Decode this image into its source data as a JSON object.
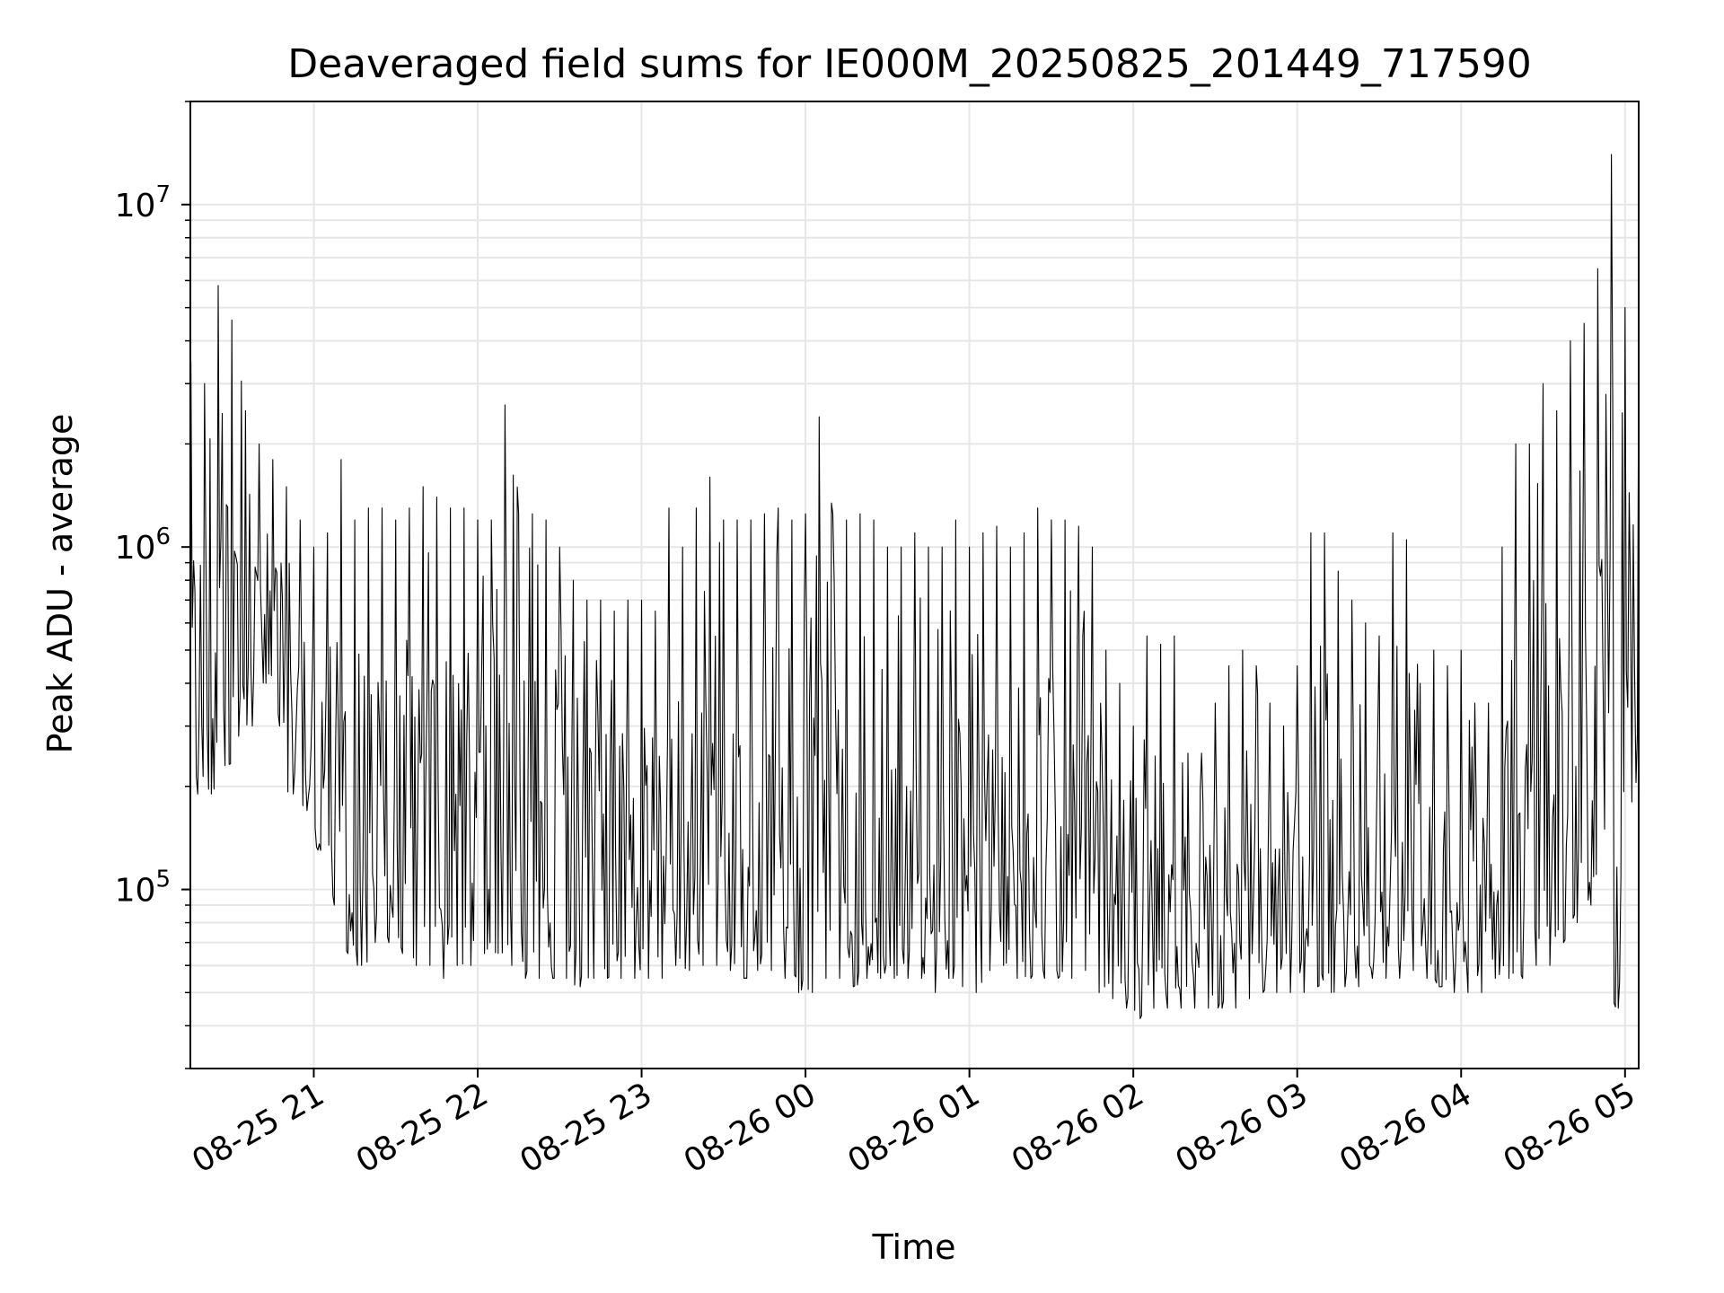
{
  "chart_data": {
    "type": "line",
    "title": "Deaveraged field sums for IE000M_20250825_201449_717590",
    "xlabel": "Time",
    "ylabel": "Peak ADU - average",
    "yscale": "log",
    "ylim": [
      30000,
      20000000
    ],
    "xlim": [
      "2025-08-25 20:14:49",
      "2025-08-26 05:05:00"
    ],
    "grid": true,
    "line_color": "#000000",
    "grid_color": "#e6e6e6",
    "x_ticks": [
      {
        "t": "2025-08-25 21:00",
        "label": "08-25 21"
      },
      {
        "t": "2025-08-25 22:00",
        "label": "08-25 22"
      },
      {
        "t": "2025-08-25 23:00",
        "label": "08-25 23"
      },
      {
        "t": "2025-08-26 00:00",
        "label": "08-26 00"
      },
      {
        "t": "2025-08-26 01:00",
        "label": "08-26 01"
      },
      {
        "t": "2025-08-26 02:00",
        "label": "08-26 02"
      },
      {
        "t": "2025-08-26 03:00",
        "label": "08-26 03"
      },
      {
        "t": "2025-08-26 04:00",
        "label": "08-26 04"
      },
      {
        "t": "2025-08-26 05:00",
        "label": "08-26 05"
      }
    ],
    "y_ticks": [
      {
        "value": 100000,
        "base": "10",
        "exp": "5"
      },
      {
        "value": 1000000,
        "base": "10",
        "exp": "6"
      },
      {
        "value": 10000000,
        "base": "10",
        "exp": "7"
      }
    ],
    "series": [
      {
        "x": [
          "2025-08-25 20:15",
          "2025-08-25 20:20",
          "2025-08-25 20:25",
          "2025-08-25 20:30",
          "2025-08-25 20:35",
          "2025-08-25 20:40",
          "2025-08-25 20:45",
          "2025-08-25 20:50",
          "2025-08-25 20:55",
          "2025-08-25 21:00",
          "2025-08-25 21:05",
          "2025-08-25 21:10",
          "2025-08-25 21:15",
          "2025-08-25 21:20",
          "2025-08-25 21:25",
          "2025-08-25 21:30",
          "2025-08-25 21:35",
          "2025-08-25 21:40",
          "2025-08-25 21:45",
          "2025-08-25 21:50",
          "2025-08-25 21:55",
          "2025-08-25 22:00",
          "2025-08-25 22:05",
          "2025-08-25 22:10",
          "2025-08-25 22:15",
          "2025-08-25 22:20",
          "2025-08-25 22:25",
          "2025-08-25 22:30",
          "2025-08-25 22:35",
          "2025-08-25 22:40",
          "2025-08-25 22:45",
          "2025-08-25 22:50",
          "2025-08-25 22:55",
          "2025-08-25 23:00",
          "2025-08-25 23:05",
          "2025-08-25 23:10",
          "2025-08-25 23:15",
          "2025-08-25 23:20",
          "2025-08-25 23:25",
          "2025-08-25 23:30",
          "2025-08-25 23:35",
          "2025-08-25 23:40",
          "2025-08-25 23:45",
          "2025-08-25 23:50",
          "2025-08-25 23:55",
          "2025-08-26 00:00",
          "2025-08-26 00:05",
          "2025-08-26 00:10",
          "2025-08-26 00:15",
          "2025-08-26 00:20",
          "2025-08-26 00:25",
          "2025-08-26 00:30",
          "2025-08-26 00:35",
          "2025-08-26 00:40",
          "2025-08-26 00:45",
          "2025-08-26 00:50",
          "2025-08-26 00:55",
          "2025-08-26 01:00",
          "2025-08-26 01:05",
          "2025-08-26 01:10",
          "2025-08-26 01:15",
          "2025-08-26 01:20",
          "2025-08-26 01:25",
          "2025-08-26 01:30",
          "2025-08-26 01:35",
          "2025-08-26 01:40",
          "2025-08-26 01:45",
          "2025-08-26 01:50",
          "2025-08-26 01:55",
          "2025-08-26 02:00",
          "2025-08-26 02:05",
          "2025-08-26 02:10",
          "2025-08-26 02:15",
          "2025-08-26 02:20",
          "2025-08-26 02:25",
          "2025-08-26 02:30",
          "2025-08-26 02:35",
          "2025-08-26 02:40",
          "2025-08-26 02:45",
          "2025-08-26 02:50",
          "2025-08-26 02:55",
          "2025-08-26 03:00",
          "2025-08-26 03:05",
          "2025-08-26 03:10",
          "2025-08-26 03:15",
          "2025-08-26 03:20",
          "2025-08-26 03:25",
          "2025-08-26 03:30",
          "2025-08-26 03:35",
          "2025-08-26 03:40",
          "2025-08-26 03:45",
          "2025-08-26 03:50",
          "2025-08-26 03:55",
          "2025-08-26 04:00",
          "2025-08-26 04:05",
          "2025-08-26 04:10",
          "2025-08-26 04:15",
          "2025-08-26 04:20",
          "2025-08-26 04:25",
          "2025-08-26 04:30",
          "2025-08-26 04:35",
          "2025-08-26 04:40",
          "2025-08-26 04:45",
          "2025-08-26 04:50",
          "2025-08-26 04:55",
          "2025-08-26 05:00",
          "2025-08-26 05:05"
        ],
        "low": [
          190000,
          190000,
          230000,
          280000,
          300000,
          400000,
          300000,
          190000,
          170000,
          130000,
          90000,
          65000,
          60000,
          70000,
          70000,
          65000,
          60000,
          60000,
          55000,
          60000,
          60000,
          65000,
          65000,
          60000,
          55000,
          55000,
          55000,
          55000,
          52000,
          55000,
          55000,
          55000,
          55000,
          55000,
          55000,
          60000,
          58000,
          60000,
          60000,
          58000,
          55000,
          58000,
          58000,
          55000,
          50000,
          50000,
          55000,
          55000,
          52000,
          55000,
          55000,
          55000,
          55000,
          55000,
          50000,
          55000,
          52000,
          50000,
          58000,
          60000,
          55000,
          55000,
          55000,
          55000,
          55000,
          58000,
          50000,
          48000,
          45000,
          42000,
          45000,
          45000,
          45000,
          45000,
          45000,
          45000,
          45000,
          48000,
          50000,
          50000,
          50000,
          50000,
          52000,
          50000,
          52000,
          52000,
          55000,
          55000,
          55000,
          58000,
          55000,
          52000,
          50000,
          50000,
          50000,
          55000,
          55000,
          55000,
          60000,
          60000,
          70000,
          80000,
          90000,
          150000,
          45000,
          180000,
          190000
        ],
        "high": [
          3500000,
          3000000,
          5800000,
          4600000,
          2500000,
          2000000,
          1800000,
          1500000,
          1200000,
          1000000,
          1100000,
          1800000,
          1200000,
          1300000,
          1300000,
          1200000,
          1300000,
          1500000,
          1400000,
          1300000,
          1300000,
          1200000,
          1200000,
          2600000,
          1250000,
          1250000,
          1200000,
          1000000,
          800000,
          700000,
          700000,
          650000,
          700000,
          700000,
          650000,
          1300000,
          1000000,
          1300000,
          1600000,
          1200000,
          1200000,
          1200000,
          1250000,
          1300000,
          1200000,
          1250000,
          2400000,
          1250000,
          1200000,
          1250000,
          1200000,
          1000000,
          1000000,
          1100000,
          1000000,
          1000000,
          1200000,
          1000000,
          1100000,
          1150000,
          1000000,
          1100000,
          1300000,
          1200000,
          1200000,
          1150000,
          1000000,
          500000,
          400000,
          300000,
          550000,
          520000,
          550000,
          250000,
          250000,
          350000,
          450000,
          500000,
          450000,
          350000,
          300000,
          450000,
          1100000,
          1100000,
          850000,
          700000,
          600000,
          550000,
          1100000,
          1050000,
          400000,
          500000,
          450000,
          500000,
          350000,
          350000,
          1000000,
          2000000,
          2000000,
          3000000,
          2500000,
          4000000,
          4500000,
          6500000,
          14000000,
          5000000,
          4000000
        ]
      }
    ]
  }
}
